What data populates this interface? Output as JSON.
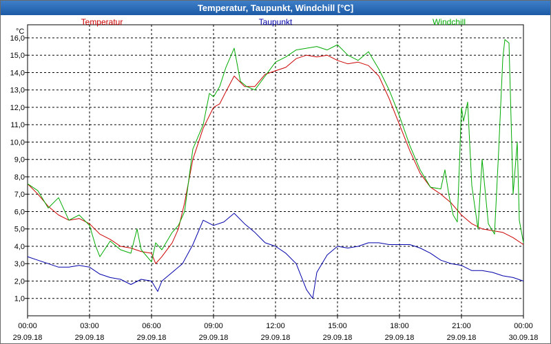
{
  "window": {
    "title": "Temperatur, Taupunkt, Windchill [°C]"
  },
  "chart_data": {
    "type": "line",
    "title": "Temperatur, Taupunkt, Windchill [°C]",
    "ylabel": "°C",
    "xlabel": "",
    "ylim": [
      0.0,
      16.75
    ],
    "xlim": [
      0,
      24
    ],
    "grid": true,
    "y_ticks": [
      "1,0",
      "2,0",
      "3,0",
      "4,0",
      "5,0",
      "6,0",
      "7,0",
      "8,0",
      "9,0",
      "10,0",
      "11,0",
      "12,0",
      "13,0",
      "14,0",
      "15,0",
      "16,0"
    ],
    "y_tick_values": [
      1,
      2,
      3,
      4,
      5,
      6,
      7,
      8,
      9,
      10,
      11,
      12,
      13,
      14,
      15,
      16
    ],
    "x_tick_hours": [
      0,
      3,
      6,
      9,
      12,
      15,
      18,
      21,
      24
    ],
    "x_tick_times": [
      "00:00",
      "03:00",
      "06:00",
      "09:00",
      "12:00",
      "15:00",
      "18:00",
      "21:00",
      "00:00"
    ],
    "x_tick_dates": [
      "29.09.18",
      "29.09.18",
      "29.09.18",
      "29.09.18",
      "29.09.18",
      "29.09.18",
      "29.09.18",
      "29.09.18",
      "30.09.18"
    ],
    "series": [
      {
        "name": "Temperatur",
        "color": "#cc0000",
        "x": [
          0,
          0.5,
          1,
          1.5,
          2,
          2.5,
          3,
          3.5,
          4,
          4.5,
          5,
          5.5,
          6,
          6.2,
          6.5,
          7,
          7.3,
          7.6,
          8,
          8.5,
          9,
          9.3,
          9.6,
          10,
          10.5,
          11,
          11.5,
          12,
          12.5,
          13,
          13.5,
          14,
          14.5,
          15,
          15.5,
          16,
          16.5,
          17,
          17.5,
          18,
          18.5,
          19,
          19.5,
          20,
          20.5,
          21,
          21.5,
          22,
          22.5,
          23,
          23.5,
          24
        ],
        "values": [
          7.6,
          7.0,
          6.3,
          5.8,
          5.5,
          5.6,
          5.3,
          4.7,
          4.4,
          4.0,
          3.9,
          3.7,
          3.6,
          3.0,
          3.4,
          4.2,
          5.0,
          6.5,
          9.0,
          10.8,
          12.0,
          12.2,
          12.9,
          13.8,
          13.2,
          13.2,
          13.9,
          14.1,
          14.3,
          14.8,
          15.0,
          14.9,
          15.0,
          14.7,
          14.5,
          14.6,
          14.4,
          13.8,
          12.5,
          11.0,
          9.5,
          8.2,
          7.4,
          7.0,
          6.5,
          5.8,
          5.3,
          5.0,
          4.9,
          4.8,
          4.5,
          4.1
        ]
      },
      {
        "name": "Taupunkt",
        "color": "#0000aa",
        "x": [
          0,
          0.5,
          1,
          1.5,
          2,
          2.5,
          3,
          3.5,
          4,
          4.5,
          5,
          5.5,
          6,
          6.3,
          6.5,
          7,
          7.5,
          8,
          8.5,
          9,
          9.5,
          10,
          10.5,
          11,
          11.5,
          12,
          12.5,
          13,
          13.5,
          13.8,
          14,
          14.5,
          15,
          15.5,
          16,
          16.5,
          17,
          17.5,
          18,
          18.5,
          19,
          19.5,
          20,
          20.5,
          21,
          21.5,
          22,
          22.5,
          23,
          23.5,
          24
        ],
        "values": [
          3.4,
          3.2,
          3.0,
          2.8,
          2.8,
          2.9,
          2.8,
          2.4,
          2.2,
          2.1,
          1.8,
          2.1,
          2.0,
          1.4,
          2.0,
          2.5,
          3.0,
          4.1,
          5.5,
          5.2,
          5.4,
          5.9,
          5.3,
          4.8,
          4.2,
          4.0,
          3.6,
          3.0,
          1.5,
          1.0,
          2.5,
          3.5,
          4.0,
          3.9,
          4.0,
          4.2,
          4.2,
          4.1,
          4.1,
          4.1,
          3.9,
          3.6,
          3.2,
          3.0,
          2.9,
          2.6,
          2.6,
          2.5,
          2.3,
          2.2,
          2.0
        ]
      },
      {
        "name": "Windchill",
        "color": "#00aa00",
        "x": [
          0,
          0.5,
          1,
          1.5,
          2,
          2.5,
          3,
          3.3,
          3.5,
          4,
          4.5,
          5,
          5.3,
          5.5,
          6,
          6.2,
          6.5,
          7,
          7.3,
          7.6,
          8,
          8.5,
          8.8,
          9,
          9.3,
          9.6,
          10,
          10.3,
          10.6,
          11,
          11.5,
          12,
          12.5,
          13,
          13.5,
          14,
          14.5,
          15,
          15.5,
          16,
          16.5,
          17,
          17.5,
          18,
          18.5,
          19,
          19.5,
          20,
          20.2,
          20.4,
          20.6,
          20.8,
          21,
          21.1,
          21.3,
          21.5,
          21.8,
          22,
          22.3,
          22.6,
          22.8,
          23,
          23.1,
          23.3,
          23.5,
          23.7,
          23.8,
          24
        ],
        "values": [
          7.6,
          7.2,
          6.2,
          6.8,
          5.5,
          5.8,
          5.2,
          4.0,
          3.4,
          4.3,
          3.8,
          3.6,
          5.0,
          3.8,
          3.1,
          4.2,
          3.8,
          4.8,
          5.2,
          6.0,
          9.6,
          11.0,
          12.8,
          12.6,
          13.2,
          14.3,
          15.4,
          13.5,
          13.2,
          13.0,
          13.8,
          14.6,
          14.9,
          15.3,
          15.4,
          15.5,
          15.3,
          15.6,
          15.0,
          14.7,
          15.2,
          14.2,
          13.0,
          11.5,
          9.8,
          8.4,
          7.4,
          7.3,
          8.4,
          6.9,
          5.8,
          5.4,
          12.0,
          11.2,
          12.3,
          7.5,
          5.0,
          9.0,
          5.3,
          4.7,
          9.5,
          14.8,
          15.9,
          15.7,
          7.0,
          10.0,
          5.5,
          4.2
        ]
      }
    ]
  }
}
